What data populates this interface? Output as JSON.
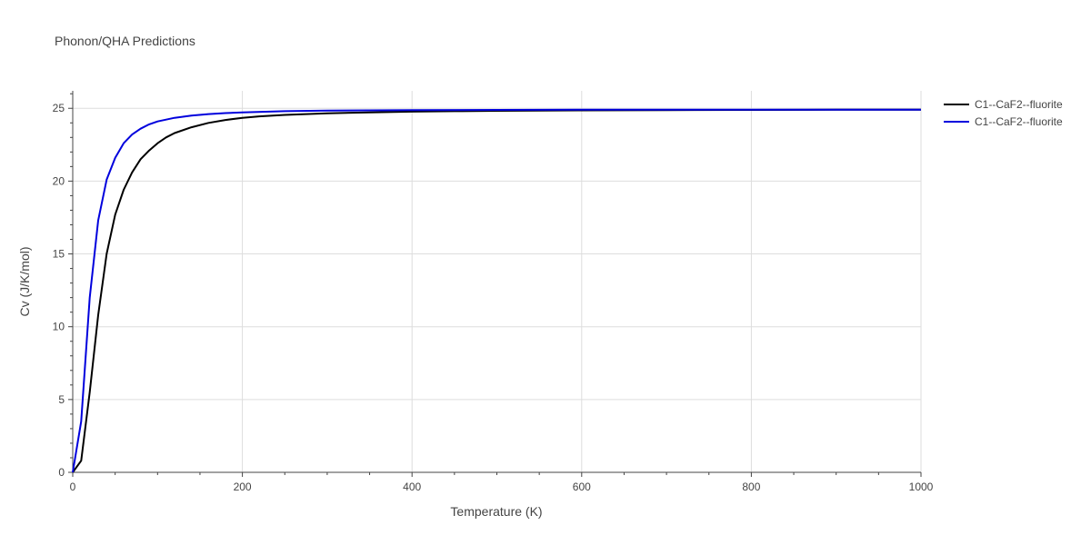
{
  "chart_data": {
    "type": "line",
    "title": "Phonon/QHA Predictions",
    "xlabel": "Temperature (K)",
    "ylabel": "Cv (J/K/mol)",
    "xlim": [
      0,
      1000
    ],
    "ylim": [
      0,
      26.2
    ],
    "x_ticks": [
      0,
      200,
      400,
      600,
      800,
      1000
    ],
    "y_ticks": [
      0,
      5,
      10,
      15,
      20,
      25
    ],
    "grid": true,
    "legend_position": "top-right",
    "series": [
      {
        "name": "C1--CaF2--fluorite",
        "color": "#000000",
        "x": [
          0,
          10,
          20,
          30,
          40,
          50,
          60,
          70,
          80,
          90,
          100,
          110,
          120,
          140,
          160,
          180,
          200,
          220,
          250,
          300,
          350,
          400,
          450,
          500,
          600,
          700,
          800,
          900,
          1000
        ],
        "y": [
          0,
          0.8,
          5.5,
          10.8,
          15.0,
          17.7,
          19.4,
          20.6,
          21.5,
          22.1,
          22.6,
          23.0,
          23.3,
          23.7,
          24.0,
          24.2,
          24.35,
          24.45,
          24.55,
          24.65,
          24.72,
          24.77,
          24.8,
          24.83,
          24.86,
          24.88,
          24.89,
          24.9,
          24.9
        ]
      },
      {
        "name": "C1--CaF2--fluorite",
        "color": "#0000dd",
        "x": [
          0,
          10,
          20,
          30,
          40,
          50,
          60,
          70,
          80,
          90,
          100,
          120,
          140,
          160,
          180,
          200,
          250,
          300,
          400,
          500,
          600,
          700,
          800,
          900,
          1000
        ],
        "y": [
          0,
          3.5,
          12.0,
          17.3,
          20.1,
          21.6,
          22.6,
          23.2,
          23.6,
          23.9,
          24.1,
          24.35,
          24.5,
          24.6,
          24.67,
          24.72,
          24.8,
          24.84,
          24.87,
          24.89,
          24.9,
          24.9,
          24.91,
          24.91,
          24.91
        ]
      }
    ]
  }
}
